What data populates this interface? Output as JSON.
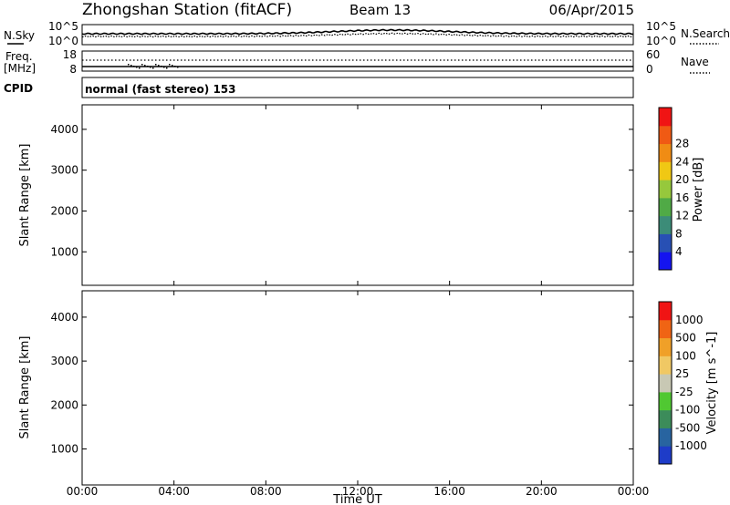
{
  "header": {
    "station": "Zhongshan Station (fitACF)",
    "beam": "Beam 13",
    "date": "06/Apr/2015"
  },
  "summary": {
    "nsky_label": "N.Sky",
    "nsky_top": "10^5",
    "nsky_bottom": "10^0",
    "nsearch_label": "N.Search",
    "nsearch_top": "10^5",
    "nsearch_bottom": "10^0",
    "freq_label": "Freq.",
    "freq_unit": "[MHz]",
    "freq_top": "18",
    "freq_bottom": "8",
    "nave_label": "Nave",
    "nave_top": "60",
    "nave_bottom": "0",
    "cpid_label": "CPID",
    "cpid_text": "normal (fast stereo) 153"
  },
  "chart_data": [
    {
      "type": "heatmap",
      "panel": "power",
      "ylabel": "Slant Range [km]",
      "ylim": [
        180,
        4600
      ],
      "yticks": [
        "1000",
        "2000",
        "3000",
        "4000"
      ],
      "xlim_hours": [
        0,
        24
      ],
      "colorbar_label": "Power [dB]",
      "colorbar_ticks": [
        "4",
        "8",
        "12",
        "16",
        "20",
        "24",
        "28"
      ],
      "colors": [
        "#1414f0",
        "#2850b4",
        "#3c8c78",
        "#50aa46",
        "#96c83c",
        "#f0c814",
        "#f08c14",
        "#f05a14",
        "#f01414"
      ]
    },
    {
      "type": "heatmap",
      "panel": "velocity",
      "ylabel": "Slant Range [km]",
      "ylim": [
        180,
        4600
      ],
      "yticks": [
        "1000",
        "2000",
        "3000",
        "4000"
      ],
      "xlim_hours": [
        0,
        24
      ],
      "xlabel": "Time UT",
      "xticks": [
        "00:00",
        "04:00",
        "08:00",
        "12:00",
        "16:00",
        "20:00",
        "00:00"
      ],
      "colorbar_label": "Velocity [m s^-1]",
      "colorbar_ticks": [
        "1000",
        "500",
        "100",
        "25",
        "-25",
        "-100",
        "-500",
        "-1000"
      ],
      "colors": [
        "#1e3cc8",
        "#2864a0",
        "#3c8c5a",
        "#50c832",
        "#c8c8b4",
        "#f0c864",
        "#f0a028",
        "#f06414",
        "#f01414"
      ]
    }
  ]
}
